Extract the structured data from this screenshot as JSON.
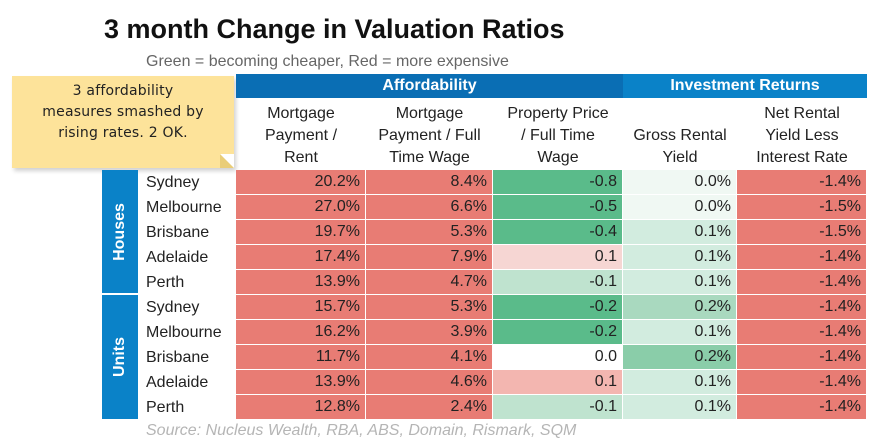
{
  "title": "3 month Change in Valuation Ratios",
  "subtitle": "Green = becoming cheaper, Red = more expensive",
  "note": [
    "3 affordability",
    "measures smashed by",
    "rising rates. 2 OK."
  ],
  "source": "Source: Nucleus Wealth, RBA, ABS, Domain, Rismark, SQM",
  "colors": {
    "group_affordability": "#0a6eb4",
    "group_investment": "#0a82c8",
    "side_label": "#0a82c8",
    "red": "#e87c74",
    "green": "#5abb8a",
    "note_bg": "#fde39a"
  },
  "chart_data": {
    "type": "table",
    "title": "3 month Change in Valuation Ratios",
    "subtitle": "Green = becoming cheaper, Red = more expensive",
    "column_groups": [
      {
        "name": "Affordability",
        "columns": [
          0,
          1,
          2
        ]
      },
      {
        "name": "Investment Returns",
        "columns": [
          3,
          4
        ]
      }
    ],
    "columns": [
      [
        "Mortgage",
        "Payment /",
        "Rent"
      ],
      [
        "Mortgage",
        "Payment / Full",
        "Time Wage"
      ],
      [
        "Property Price",
        "/ Full Time",
        "Wage"
      ],
      [
        "Gross Rental",
        "Yield"
      ],
      [
        "Net Rental",
        "Yield Less",
        "Interest Rate"
      ]
    ],
    "row_groups": [
      {
        "name": "Houses",
        "rows": [
          {
            "city": "Sydney",
            "values": [
              "20.2%",
              "8.4%",
              "-0.8",
              "0.0%",
              "-1.4%"
            ]
          },
          {
            "city": "Melbourne",
            "values": [
              "27.0%",
              "6.6%",
              "-0.5",
              "0.0%",
              "-1.5%"
            ]
          },
          {
            "city": "Brisbane",
            "values": [
              "19.7%",
              "5.3%",
              "-0.4",
              "0.1%",
              "-1.5%"
            ]
          },
          {
            "city": "Adelaide",
            "values": [
              "17.4%",
              "7.9%",
              "0.1",
              "0.1%",
              "-1.4%"
            ]
          },
          {
            "city": "Perth",
            "values": [
              "13.9%",
              "4.7%",
              "-0.1",
              "0.1%",
              "-1.4%"
            ]
          }
        ]
      },
      {
        "name": "Units",
        "rows": [
          {
            "city": "Sydney",
            "values": [
              "15.7%",
              "5.3%",
              "-0.2",
              "0.2%",
              "-1.4%"
            ]
          },
          {
            "city": "Melbourne",
            "values": [
              "16.2%",
              "3.9%",
              "-0.2",
              "0.1%",
              "-1.4%"
            ]
          },
          {
            "city": "Brisbane",
            "values": [
              "11.7%",
              "4.1%",
              "0.0",
              "0.2%",
              "-1.4%"
            ]
          },
          {
            "city": "Adelaide",
            "values": [
              "13.9%",
              "4.6%",
              "0.1",
              "0.1%",
              "-1.4%"
            ]
          },
          {
            "city": "Perth",
            "values": [
              "12.8%",
              "2.4%",
              "-0.1",
              "0.1%",
              "-1.4%"
            ]
          }
        ]
      }
    ],
    "cell_colors": [
      [
        "#e87c74",
        "#e87c74",
        "#5abb8a",
        "#f0f8f3",
        "#e87c74"
      ],
      [
        "#e87c74",
        "#e87c74",
        "#5abb8a",
        "#f0f8f3",
        "#e87c74"
      ],
      [
        "#e87c74",
        "#e87c74",
        "#5abb8a",
        "#d2ecdf",
        "#e87c74"
      ],
      [
        "#e87c74",
        "#e87c74",
        "#f6d6d3",
        "#d2ecdf",
        "#e87c74"
      ],
      [
        "#e87c74",
        "#e87c74",
        "#bfe3cf",
        "#d2ecdf",
        "#e87c74"
      ],
      [
        "#e87c74",
        "#e87c74",
        "#5abb8a",
        "#a9d9bf",
        "#e87c74"
      ],
      [
        "#e87c74",
        "#e87c74",
        "#5abb8a",
        "#d2ecdf",
        "#e87c74"
      ],
      [
        "#e87c74",
        "#e87c74",
        "#ffffff",
        "#8acda9",
        "#e87c74"
      ],
      [
        "#e87c74",
        "#e87c74",
        "#f3b6b0",
        "#d2ecdf",
        "#e87c74"
      ],
      [
        "#e87c74",
        "#e87c74",
        "#bfe3cf",
        "#d2ecdf",
        "#e87c74"
      ]
    ]
  }
}
